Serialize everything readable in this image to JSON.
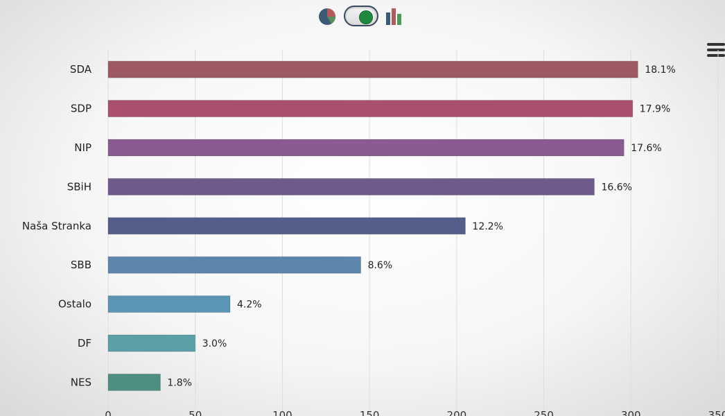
{
  "toolbar": {
    "icons": [
      "pie-chart-icon",
      "toggle-switch-icon",
      "bar-chart-icon"
    ],
    "menu_icon": "hamburger-menu-icon"
  },
  "chart_data": {
    "type": "bar",
    "orientation": "horizontal",
    "categories": [
      "SDA",
      "SDP",
      "NIP",
      "SBiH",
      "Naša Stranka",
      "SBB",
      "Ostalo",
      "DF",
      "NES"
    ],
    "values": [
      304,
      301,
      296,
      279,
      205,
      145,
      70,
      50,
      30
    ],
    "data_labels": [
      "18.1%",
      "17.9%",
      "17.6%",
      "16.6%",
      "12.2%",
      "8.6%",
      "4.2%",
      "3.0%",
      "1.8%"
    ],
    "colors": [
      "#9e5a63",
      "#a9506e",
      "#8a5a92",
      "#6e5a8c",
      "#555e8a",
      "#5e86ad",
      "#5a96b4",
      "#5aa0a6",
      "#4f8f82"
    ],
    "xlim": [
      0,
      350
    ],
    "xticks": [
      0,
      50,
      100,
      150,
      200,
      250,
      300,
      350
    ],
    "grid": true
  }
}
